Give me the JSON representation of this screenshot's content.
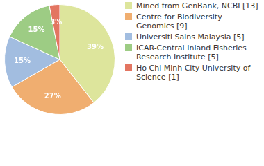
{
  "chart_data": {
    "type": "pie",
    "categories": [
      "Mined from GenBank, NCBI [13]",
      "Centre for Biodiversity Genomics [9]",
      "Universiti Sains Malaysia [5]",
      "ICAR-Central Inland Fisheries Research Institute [5]",
      "Ho Chi Minh City University of Science [1]"
    ],
    "values": [
      39,
      27,
      15,
      15,
      3
    ],
    "value_labels": [
      "39%",
      "27%",
      "15%",
      "15%",
      "3%"
    ],
    "colors": [
      "#dde59c",
      "#f0ae70",
      "#a2bde0",
      "#9dcc84",
      "#e37561"
    ],
    "data_labels": true,
    "legend": "right"
  }
}
